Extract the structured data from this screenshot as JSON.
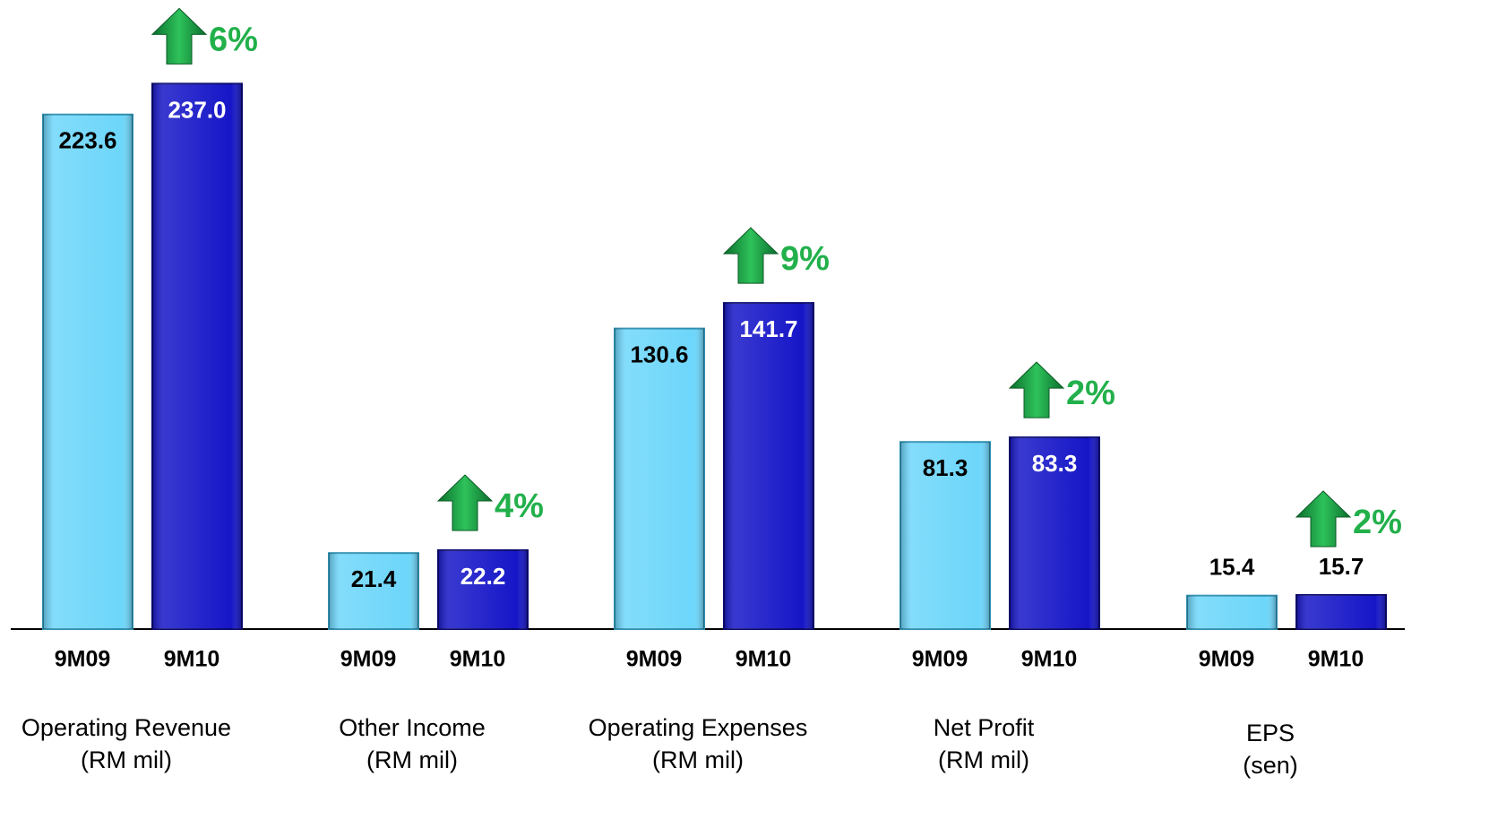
{
  "chart_data": [
    {
      "type": "bar",
      "title": "Operating Revenue",
      "subtitle": "(RM mil)",
      "categories": [
        "9M09",
        "9M10"
      ],
      "values": [
        223.6,
        237.0
      ],
      "value_labels": [
        "223.6",
        "237.0"
      ],
      "colors": [
        "#6dd6fa",
        "#1616c8"
      ],
      "ylim": [
        0,
        250
      ],
      "annotation": "6%"
    },
    {
      "type": "bar",
      "title": "Other Income",
      "subtitle": "(RM mil)",
      "categories": [
        "9M09",
        "9M10"
      ],
      "values": [
        21.4,
        22.2
      ],
      "colors": [
        "#6dd6fa",
        "#1616c8"
      ],
      "ylim": [
        0,
        162
      ],
      "annotation": "4%"
    },
    {
      "type": "bar",
      "title": "Operating Expenses",
      "subtitle": "(RM mil)",
      "categories": [
        "9M09",
        "9M10"
      ],
      "values": [
        130.6,
        141.7
      ],
      "colors": [
        "#6dd6fa",
        "#1616c8"
      ],
      "ylim": [
        0,
        250
      ],
      "annotation": "9%"
    },
    {
      "type": "bar",
      "title": "Net Profit",
      "subtitle": "(RM mil)",
      "categories": [
        "9M09",
        "9M10"
      ],
      "values": [
        81.3,
        83.3
      ],
      "colors": [
        "#6dd6fa",
        "#1616c8"
      ],
      "ylim": [
        0,
        250
      ],
      "annotation": "2%"
    },
    {
      "type": "bar",
      "title": "EPS",
      "subtitle": "(sen)",
      "categories": [
        "9M09",
        "9M10"
      ],
      "values": [
        15.4,
        15.7
      ],
      "colors": [
        "#6dd6fa",
        "#1616c8"
      ],
      "ylim": [
        0,
        265
      ],
      "annotation": "2%"
    }
  ]
}
